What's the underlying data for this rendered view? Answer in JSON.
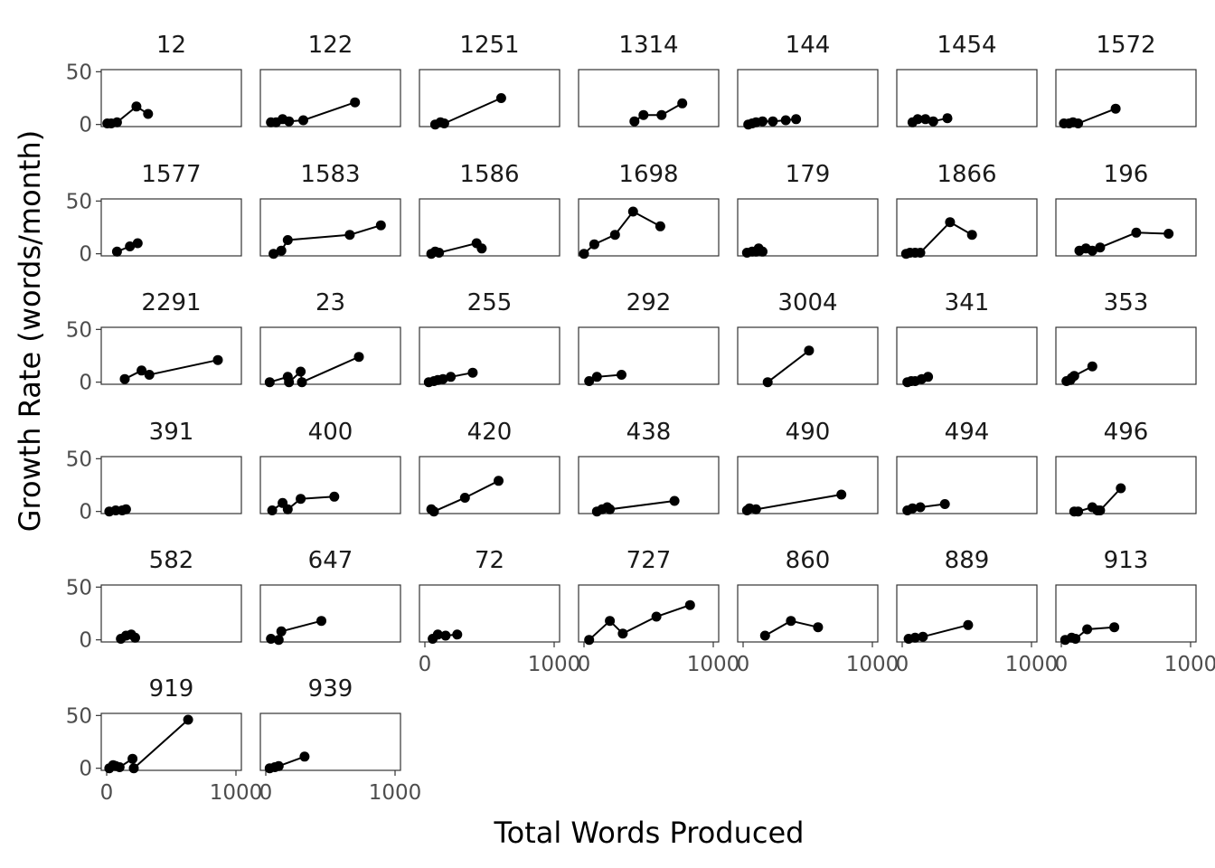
{
  "chart_data": {
    "type": "scatter",
    "facet_type": "small-multiples",
    "xlabel": "Total Words Produced",
    "ylabel": "Growth Rate (words/month)",
    "y_ticks": [
      0,
      50
    ],
    "ylim": [
      -2,
      52
    ],
    "xlim": [
      0,
      1000
    ],
    "x_tick_labels": [
      "0",
      "1000"
    ],
    "grid": false,
    "point_color": "#000000",
    "line_color": "#000000",
    "panels": [
      {
        "label": "12",
        "x": [
          5,
          35,
          80,
          230,
          320
        ],
        "y": [
          1,
          1,
          2,
          17,
          10
        ]
      },
      {
        "label": "122",
        "x": [
          40,
          80,
          130,
          180,
          290,
          690
        ],
        "y": [
          2,
          2,
          5,
          3,
          4,
          21
        ]
      },
      {
        "label": "1251",
        "x": [
          80,
          120,
          150,
          590
        ],
        "y": [
          0,
          2,
          1,
          25
        ]
      },
      {
        "label": "1314",
        "x": [
          390,
          460,
          600,
          760
        ],
        "y": [
          3,
          9,
          9,
          20
        ]
      },
      {
        "label": "144",
        "x": [
          40,
          70,
          100,
          150,
          230,
          330,
          410
        ],
        "y": [
          0,
          1,
          2,
          3,
          3,
          4,
          5
        ]
      },
      {
        "label": "1454",
        "x": [
          80,
          120,
          180,
          240,
          350
        ],
        "y": [
          2,
          5,
          5,
          3,
          6
        ]
      },
      {
        "label": "1572",
        "x": [
          20,
          60,
          90,
          130,
          420
        ],
        "y": [
          1,
          1,
          2,
          1,
          15
        ]
      },
      {
        "label": "1577",
        "x": [
          80,
          180,
          240
        ],
        "y": [
          2,
          7,
          10
        ]
      },
      {
        "label": "1583",
        "x": [
          60,
          120,
          170,
          650,
          890
        ],
        "y": [
          0,
          3,
          13,
          18,
          27
        ]
      },
      {
        "label": "1586",
        "x": [
          50,
          80,
          110,
          400,
          440
        ],
        "y": [
          0,
          2,
          1,
          10,
          5
        ]
      },
      {
        "label": "1698",
        "x": [
          0,
          80,
          240,
          380,
          590
        ],
        "y": [
          0,
          9,
          18,
          40,
          26
        ]
      },
      {
        "label": "179",
        "x": [
          30,
          70,
          100,
          120,
          150
        ],
        "y": [
          1,
          2,
          2,
          5,
          2
        ]
      },
      {
        "label": "1866",
        "x": [
          30,
          60,
          100,
          140,
          370,
          540
        ],
        "y": [
          0,
          1,
          1,
          1,
          30,
          18
        ]
      },
      {
        "label": "196",
        "x": [
          140,
          190,
          240,
          300,
          580,
          830
        ],
        "y": [
          3,
          5,
          3,
          6,
          20,
          19
        ]
      },
      {
        "label": "2291",
        "x": [
          140,
          270,
          330,
          860
        ],
        "y": [
          3,
          11,
          7,
          21
        ]
      },
      {
        "label": "23",
        "x": [
          30,
          170,
          180,
          270,
          280,
          720
        ],
        "y": [
          0,
          5,
          0,
          10,
          0,
          24
        ]
      },
      {
        "label": "255",
        "x": [
          30,
          70,
          100,
          140,
          200,
          370
        ],
        "y": [
          0,
          1,
          2,
          3,
          5,
          9
        ]
      },
      {
        "label": "292",
        "x": [
          40,
          100,
          290
        ],
        "y": [
          1,
          5,
          7
        ]
      },
      {
        "label": "3004",
        "x": [
          190,
          510
        ],
        "y": [
          0,
          30
        ]
      },
      {
        "label": "341",
        "x": [
          40,
          70,
          100,
          150,
          200
        ],
        "y": [
          0,
          1,
          1,
          3,
          5
        ]
      },
      {
        "label": "353",
        "x": [
          40,
          70,
          80,
          100,
          240
        ],
        "y": [
          1,
          2,
          4,
          6,
          15
        ]
      },
      {
        "label": "391",
        "x": [
          20,
          70,
          120,
          150
        ],
        "y": [
          0,
          1,
          1,
          2
        ]
      },
      {
        "label": "400",
        "x": [
          50,
          130,
          170,
          270,
          530
        ],
        "y": [
          1,
          8,
          2,
          12,
          14
        ]
      },
      {
        "label": "420",
        "x": [
          50,
          70,
          310,
          570
        ],
        "y": [
          2,
          0,
          13,
          29
        ]
      },
      {
        "label": "438",
        "x": [
          100,
          140,
          180,
          200,
          700
        ],
        "y": [
          0,
          2,
          4,
          2,
          10
        ]
      },
      {
        "label": "490",
        "x": [
          30,
          50,
          100,
          760
        ],
        "y": [
          1,
          3,
          2,
          16
        ]
      },
      {
        "label": "494",
        "x": [
          40,
          80,
          140,
          330
        ],
        "y": [
          1,
          3,
          4,
          7
        ]
      },
      {
        "label": "496",
        "x": [
          100,
          130,
          240,
          280,
          300,
          460
        ],
        "y": [
          0,
          0,
          4,
          1,
          1,
          22
        ]
      },
      {
        "label": "582",
        "x": [
          110,
          150,
          190,
          220
        ],
        "y": [
          1,
          4,
          5,
          2
        ]
      },
      {
        "label": "647",
        "x": [
          40,
          100,
          120,
          430
        ],
        "y": [
          1,
          0,
          8,
          18
        ]
      },
      {
        "label": "72",
        "x": [
          60,
          100,
          160,
          250
        ],
        "y": [
          1,
          5,
          4,
          5
        ]
      },
      {
        "label": "727",
        "x": [
          40,
          200,
          300,
          560,
          820
        ],
        "y": [
          0,
          18,
          6,
          22,
          33
        ]
      },
      {
        "label": "860",
        "x": [
          170,
          370,
          580
        ],
        "y": [
          4,
          18,
          12
        ]
      },
      {
        "label": "889",
        "x": [
          50,
          100,
          160,
          510
        ],
        "y": [
          1,
          2,
          3,
          14
        ]
      },
      {
        "label": "913",
        "x": [
          30,
          80,
          110,
          200,
          410
        ],
        "y": [
          0,
          2,
          1,
          10,
          12
        ]
      },
      {
        "label": "919",
        "x": [
          20,
          50,
          70,
          100,
          200,
          210,
          630
        ],
        "y": [
          0,
          3,
          2,
          1,
          9,
          0,
          46
        ]
      },
      {
        "label": "939",
        "x": [
          30,
          70,
          100,
          300
        ],
        "y": [
          0,
          1,
          2,
          11
        ]
      }
    ]
  }
}
